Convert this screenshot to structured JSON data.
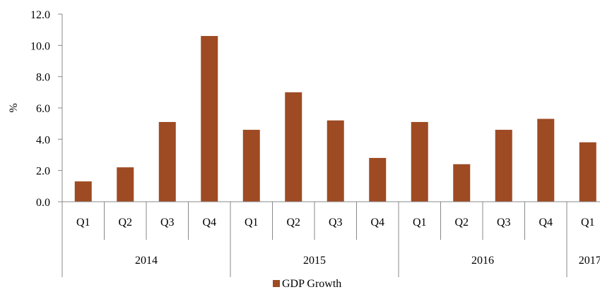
{
  "chart_data": {
    "type": "bar",
    "ylabel": "%",
    "ylim": [
      0,
      12
    ],
    "y_ticks": [
      "0.0",
      "2.0",
      "4.0",
      "6.0",
      "8.0",
      "10.0",
      "12.0"
    ],
    "quarters": [
      "Q1",
      "Q2",
      "Q3",
      "Q4",
      "Q1",
      "Q2",
      "Q3",
      "Q4",
      "Q1",
      "Q2",
      "Q3",
      "Q4",
      "Q1"
    ],
    "year_groups": [
      {
        "label": "2014",
        "count": 4
      },
      {
        "label": "2015",
        "count": 4
      },
      {
        "label": "2016",
        "count": 4
      },
      {
        "label": "2017",
        "count": 1
      }
    ],
    "series": [
      {
        "name": "GDP Growth",
        "color": "#9E4A23",
        "values": [
          1.3,
          2.2,
          5.1,
          10.6,
          4.6,
          7.0,
          5.2,
          2.8,
          5.1,
          2.4,
          4.6,
          5.3,
          3.8
        ]
      }
    ],
    "legend_position": "bottom",
    "grid": false
  }
}
